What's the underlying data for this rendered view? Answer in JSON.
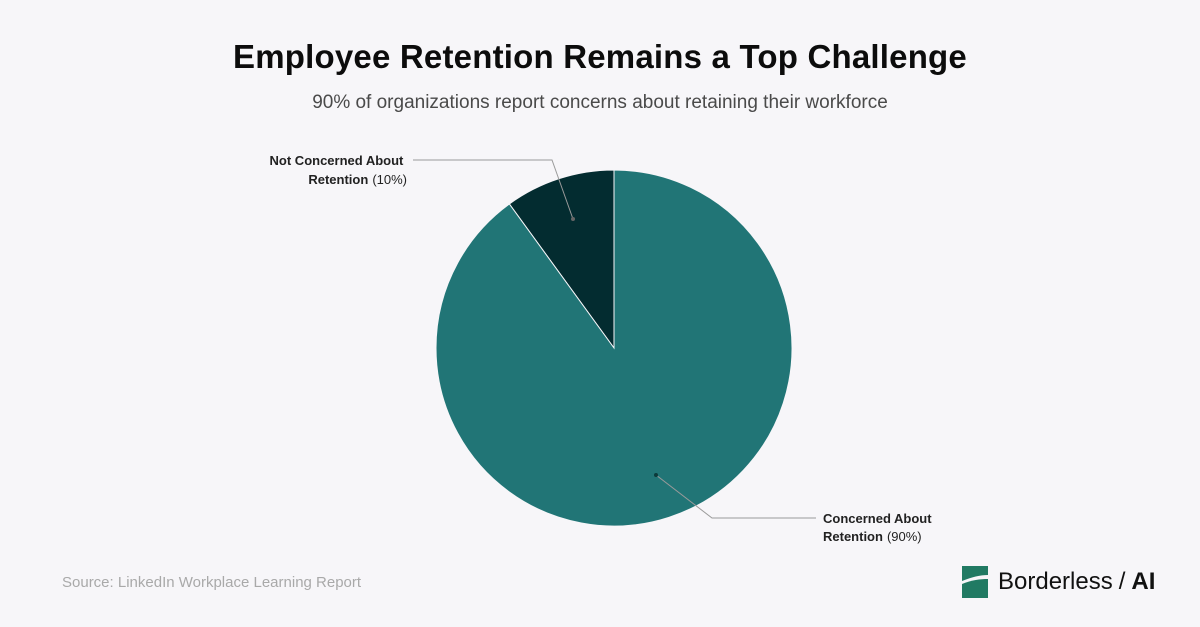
{
  "chart_data": {
    "type": "pie",
    "title": "Employee Retention Remains a Top Challenge",
    "subtitle": "90% of organizations report concerns about retaining their workforce",
    "slices": [
      {
        "label_line1": "Not Concerned About",
        "label_line2": "Retention",
        "percent_text": "(10%)",
        "value": 10,
        "color": "#032c30"
      },
      {
        "label_line1": "Concerned About",
        "label_line2": "Retention",
        "percent_text": "(90%)",
        "value": 90,
        "color": "#217576"
      }
    ]
  },
  "footer": {
    "source": "Source: LinkedIn Workplace Learning Report",
    "brand_name": "Borderless",
    "brand_slash": "/",
    "brand_suffix": "AI",
    "brand_color": "#217a63"
  }
}
